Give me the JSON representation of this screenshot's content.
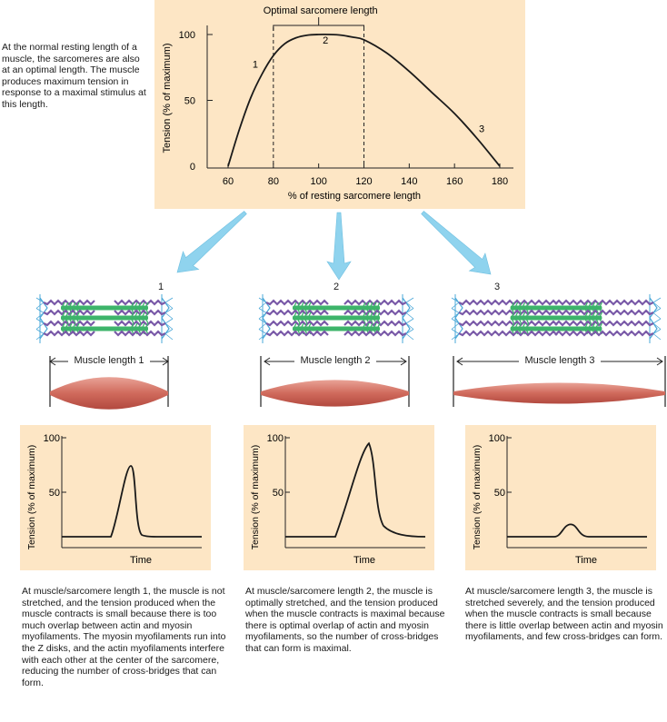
{
  "main_chart": {
    "type": "line",
    "annotation": "Optimal sarcomere length",
    "ylabel": "Tension (% of maximum)",
    "xlabel": "% of resting sarcomere length",
    "x_ticks": [
      "60",
      "80",
      "100",
      "120",
      "140",
      "160",
      "180"
    ],
    "y_ticks": [
      "0",
      "50",
      "100"
    ],
    "xlim": [
      60,
      180
    ],
    "ylim": [
      0,
      100
    ],
    "optimal_range": [
      80,
      120
    ],
    "series": [
      {
        "x": [
          60,
          65,
          70,
          75,
          80,
          85,
          90,
          95,
          100,
          105,
          110,
          115,
          120,
          130,
          140,
          150,
          160,
          170,
          180
        ],
        "y": [
          0,
          28,
          52,
          70,
          84,
          93,
          97.5,
          99.5,
          100,
          100,
          99.5,
          98,
          96,
          86,
          72,
          56,
          40,
          21,
          0
        ]
      }
    ],
    "point_labels": [
      {
        "text": "1",
        "x": 72,
        "y": 75
      },
      {
        "text": "2",
        "x": 103,
        "y": 93
      },
      {
        "text": "3",
        "x": 172,
        "y": 26
      }
    ]
  },
  "intro_text": "At the normal resting length of a muscle, the sarcomeres are also at an optimal length. The muscle produces maximum tension in response to a maximal stimulus at this length.",
  "cases": [
    {
      "number": "1",
      "muscle_label": "Muscle length 1",
      "ylabel": "Tension (% of maximum)",
      "xlabel": "Time",
      "y_ticks": [
        "100",
        "50"
      ],
      "peak": 75,
      "baseline": 12,
      "caption": "At muscle/sarcomere length 1, the muscle is not stretched, and the tension produced when the muscle contracts is small because there is too much overlap between actin and myosin myofilaments. The myosin myofilaments run into the Z disks, and the actin myofilaments interfere with each other at the center of the sarcomere, reducing the number of cross-bridges that can form."
    },
    {
      "number": "2",
      "muscle_label": "Muscle length 2",
      "ylabel": "Tension (% of maximum)",
      "xlabel": "Time",
      "y_ticks": [
        "100",
        "50"
      ],
      "peak": 95,
      "baseline": 12,
      "caption": "At muscle/sarcomere length 2, the muscle is optimally stretched, and the tension produced when the muscle contracts is maximal because there is optimal overlap of actin and myosin myofilaments, so the number of cross-bridges that can form is maximal."
    },
    {
      "number": "3",
      "muscle_label": "Muscle length 3",
      "ylabel": "Tension (% of maximum)",
      "xlabel": "Time",
      "y_ticks": [
        "100",
        "50"
      ],
      "peak": 23,
      "baseline": 12,
      "caption": "At muscle/sarcomere length 3, the muscle is stretched severely, and the tension produced when the muscle contracts is small because there is little overlap between actin and myosin myofilaments, and few cross-bridges can form."
    }
  ],
  "colors": {
    "panel": "#fde6c5",
    "arrow": "#8fd3ee",
    "actin": "#7a5aa8",
    "myosin": "#3db46a",
    "zdisk": "#4aa8d8",
    "muscle": "#d06a5c"
  }
}
